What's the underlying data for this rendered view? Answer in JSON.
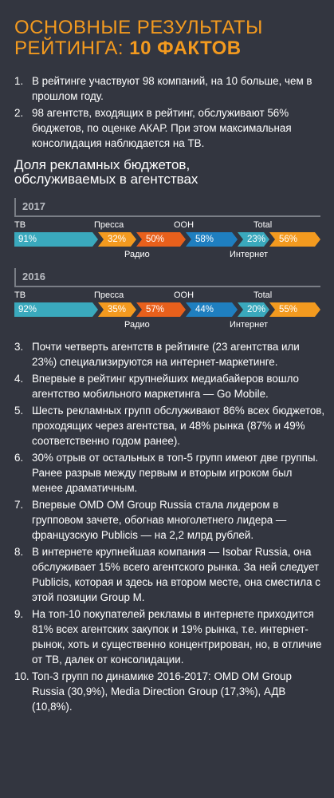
{
  "title": {
    "line1": "ОСНОВНЫЕ РЕЗУЛЬТАТЫ",
    "line2_prefix": "РЕЙТИНГА: ",
    "line2_highlight": "10 ФАКТОВ"
  },
  "facts_top": [
    {
      "num": "1.",
      "text": "В рейтинге участвуют 98 компаний, на 10 больше, чем в прошлом году."
    },
    {
      "num": "2.",
      "text": "98 агентств, входящих в рейтинг, обслуживают 56% бюджетов, по оценке АКАР. При этом максимальная консолидация наблюдается на ТВ."
    }
  ],
  "chart_heading": {
    "line1": "Доля рекламных бюджетов,",
    "line2": "обслуживаемых в агентствах"
  },
  "chart_data": [
    {
      "type": "bar",
      "year": "2017",
      "categories": [
        "ТВ",
        "Пресса",
        "Радио",
        "ООН",
        "Интернет",
        "Total"
      ],
      "values": [
        91,
        32,
        50,
        58,
        23,
        56
      ],
      "value_labels": [
        "91%",
        "32%",
        "50%",
        "58%",
        "23%",
        "56%"
      ],
      "colors": {
        "tv": "#3aa9bd",
        "press": "#f39a1f",
        "radio": "#e8601c",
        "ooh": "#1f7fc0",
        "internet": "#3aa9bd",
        "total": "#f39a1f"
      }
    },
    {
      "type": "bar",
      "year": "2016",
      "categories": [
        "ТВ",
        "Пресса",
        "Радио",
        "ООН",
        "Интернет",
        "Total"
      ],
      "values": [
        92,
        35,
        57,
        44,
        20,
        55
      ],
      "value_labels": [
        "92%",
        "35%",
        "57%",
        "44%",
        "20%",
        "55%"
      ],
      "colors": {
        "tv": "#3aa9bd",
        "press": "#f39a1f",
        "radio": "#e8601c",
        "ooh": "#1f7fc0",
        "internet": "#3aa9bd",
        "total": "#f39a1f"
      }
    }
  ],
  "facts_bottom": [
    {
      "num": "3.",
      "text": "Почти четверть агентств в рейтинге (23 агентства или 23%) специализируются на интернет-маркетинге."
    },
    {
      "num": "4.",
      "text": "Впервые в рейтинг крупнейших медиабайеров вошло агентство мобильного маркетинга — Go Mobile."
    },
    {
      "num": "5.",
      "text": "Шесть рекламных групп обслуживают 86% всех бюджетов, проходящих через агентства, и 48% рынка (87% и 49% соответственно годом ранее)."
    },
    {
      "num": "6.",
      "text": "30% отрыв от остальных в топ-5 групп имеют две группы. Ранее разрыв между первым и вторым игроком был менее драматичным."
    },
    {
      "num": "7.",
      "text": "Впервые OMD OM Group Russia стала лидером в групповом зачете, обогнав многолетнего лидера — французскую Publicis — на 2,2 млрд рублей."
    },
    {
      "num": "8.",
      "text": "В интернете крупнейшая компания — Isobar Russia, она обслуживает 15% всего агентского рынка. За ней следует Publicis, которая и здесь на втором месте, она сместила с этой позиции Group M."
    },
    {
      "num": "9.",
      "text": "На топ-10 покупателей рекламы в интернете приходится 81% всех агентских закупок и 19% рынка, т.е. интернет-рынок, хоть и существенно концентрирован, но, в отличие от ТВ, далек от консолидации."
    },
    {
      "num": "10.",
      "text": "Топ-3 групп по динамике 2016-2017: OMD OM Group Russia (30,9%), Media Direction Group (17,3%), АДВ (10,8%)."
    }
  ]
}
